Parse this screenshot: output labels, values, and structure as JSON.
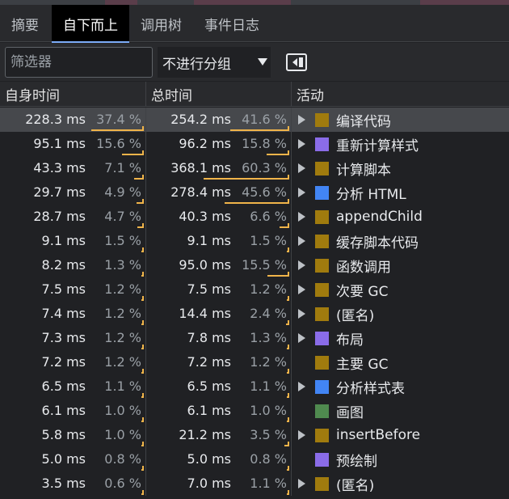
{
  "tabs": [
    {
      "label": "摘要",
      "active": false
    },
    {
      "label": "自下而上",
      "active": true
    },
    {
      "label": "调用树",
      "active": false
    },
    {
      "label": "事件日志",
      "active": false
    }
  ],
  "toolbar": {
    "filter_placeholder": "筛选器",
    "filter_value": "",
    "group_select": "不进行分组",
    "sidebar_toggle_icon": "sidebar-toggle-icon"
  },
  "columns": {
    "self": "自身时间",
    "total": "总时间",
    "activity": "活动"
  },
  "colors": {
    "script": "#a07b0e",
    "render": "#8a6ce8",
    "parse": "#4285f4",
    "paint": "#4f8a4f",
    "bar": "#f0b44a"
  },
  "rows": [
    {
      "self_ms": "228.3 ms",
      "self_pct": "37.4 %",
      "self_frac": 0.374,
      "total_ms": "254.2 ms",
      "total_pct": "41.6 %",
      "total_frac": 0.416,
      "expandable": true,
      "color": "#a07b0e",
      "label": "编译代码",
      "selected": true
    },
    {
      "self_ms": "95.1 ms",
      "self_pct": "15.6 %",
      "self_frac": 0.156,
      "total_ms": "96.2 ms",
      "total_pct": "15.8 %",
      "total_frac": 0.158,
      "expandable": true,
      "color": "#8a6ce8",
      "label": "重新计算样式",
      "selected": false
    },
    {
      "self_ms": "43.3 ms",
      "self_pct": "7.1 %",
      "self_frac": 0.071,
      "total_ms": "368.1 ms",
      "total_pct": "60.3 %",
      "total_frac": 0.603,
      "expandable": true,
      "color": "#a07b0e",
      "label": "计算脚本",
      "selected": false
    },
    {
      "self_ms": "29.7 ms",
      "self_pct": "4.9 %",
      "self_frac": 0.049,
      "total_ms": "278.4 ms",
      "total_pct": "45.6 %",
      "total_frac": 0.456,
      "expandable": true,
      "color": "#4285f4",
      "label": "分析 HTML",
      "selected": false
    },
    {
      "self_ms": "28.7 ms",
      "self_pct": "4.7 %",
      "self_frac": 0.047,
      "total_ms": "40.3 ms",
      "total_pct": "6.6 %",
      "total_frac": 0.066,
      "expandable": true,
      "color": "#a07b0e",
      "label": "appendChild",
      "selected": false
    },
    {
      "self_ms": "9.1 ms",
      "self_pct": "1.5 %",
      "self_frac": 0.015,
      "total_ms": "9.1 ms",
      "total_pct": "1.5 %",
      "total_frac": 0.015,
      "expandable": true,
      "color": "#a07b0e",
      "label": "缓存脚本代码",
      "selected": false
    },
    {
      "self_ms": "8.2 ms",
      "self_pct": "1.3 %",
      "self_frac": 0.013,
      "total_ms": "95.0 ms",
      "total_pct": "15.5 %",
      "total_frac": 0.155,
      "expandable": true,
      "color": "#a07b0e",
      "label": "函数调用",
      "selected": false
    },
    {
      "self_ms": "7.5 ms",
      "self_pct": "1.2 %",
      "self_frac": 0.012,
      "total_ms": "7.5 ms",
      "total_pct": "1.2 %",
      "total_frac": 0.012,
      "expandable": true,
      "color": "#a07b0e",
      "label": "次要 GC",
      "selected": false
    },
    {
      "self_ms": "7.4 ms",
      "self_pct": "1.2 %",
      "self_frac": 0.012,
      "total_ms": "14.4 ms",
      "total_pct": "2.4 %",
      "total_frac": 0.024,
      "expandable": true,
      "color": "#a07b0e",
      "label": "(匿名)",
      "selected": false
    },
    {
      "self_ms": "7.3 ms",
      "self_pct": "1.2 %",
      "self_frac": 0.012,
      "total_ms": "7.8 ms",
      "total_pct": "1.3 %",
      "total_frac": 0.013,
      "expandable": true,
      "color": "#8a6ce8",
      "label": "布局",
      "selected": false
    },
    {
      "self_ms": "7.2 ms",
      "self_pct": "1.2 %",
      "self_frac": 0.012,
      "total_ms": "7.2 ms",
      "total_pct": "1.2 %",
      "total_frac": 0.012,
      "expandable": false,
      "color": "#a07b0e",
      "label": "主要 GC",
      "selected": false
    },
    {
      "self_ms": "6.5 ms",
      "self_pct": "1.1 %",
      "self_frac": 0.011,
      "total_ms": "6.5 ms",
      "total_pct": "1.1 %",
      "total_frac": 0.011,
      "expandable": true,
      "color": "#4285f4",
      "label": "分析样式表",
      "selected": false
    },
    {
      "self_ms": "6.1 ms",
      "self_pct": "1.0 %",
      "self_frac": 0.01,
      "total_ms": "6.1 ms",
      "total_pct": "1.0 %",
      "total_frac": 0.01,
      "expandable": false,
      "color": "#4f8a4f",
      "label": "画图",
      "selected": false
    },
    {
      "self_ms": "5.8 ms",
      "self_pct": "1.0 %",
      "self_frac": 0.01,
      "total_ms": "21.2 ms",
      "total_pct": "3.5 %",
      "total_frac": 0.035,
      "expandable": true,
      "color": "#a07b0e",
      "label": "insertBefore",
      "selected": false
    },
    {
      "self_ms": "5.0 ms",
      "self_pct": "0.8 %",
      "self_frac": 0.008,
      "total_ms": "5.0 ms",
      "total_pct": "0.8 %",
      "total_frac": 0.008,
      "expandable": false,
      "color": "#8a6ce8",
      "label": "预绘制",
      "selected": false
    },
    {
      "self_ms": "3.5 ms",
      "self_pct": "0.6 %",
      "self_frac": 0.006,
      "total_ms": "7.0 ms",
      "total_pct": "1.1 %",
      "total_frac": 0.011,
      "expandable": true,
      "color": "#a07b0e",
      "label": "(匿名)",
      "selected": false
    }
  ]
}
